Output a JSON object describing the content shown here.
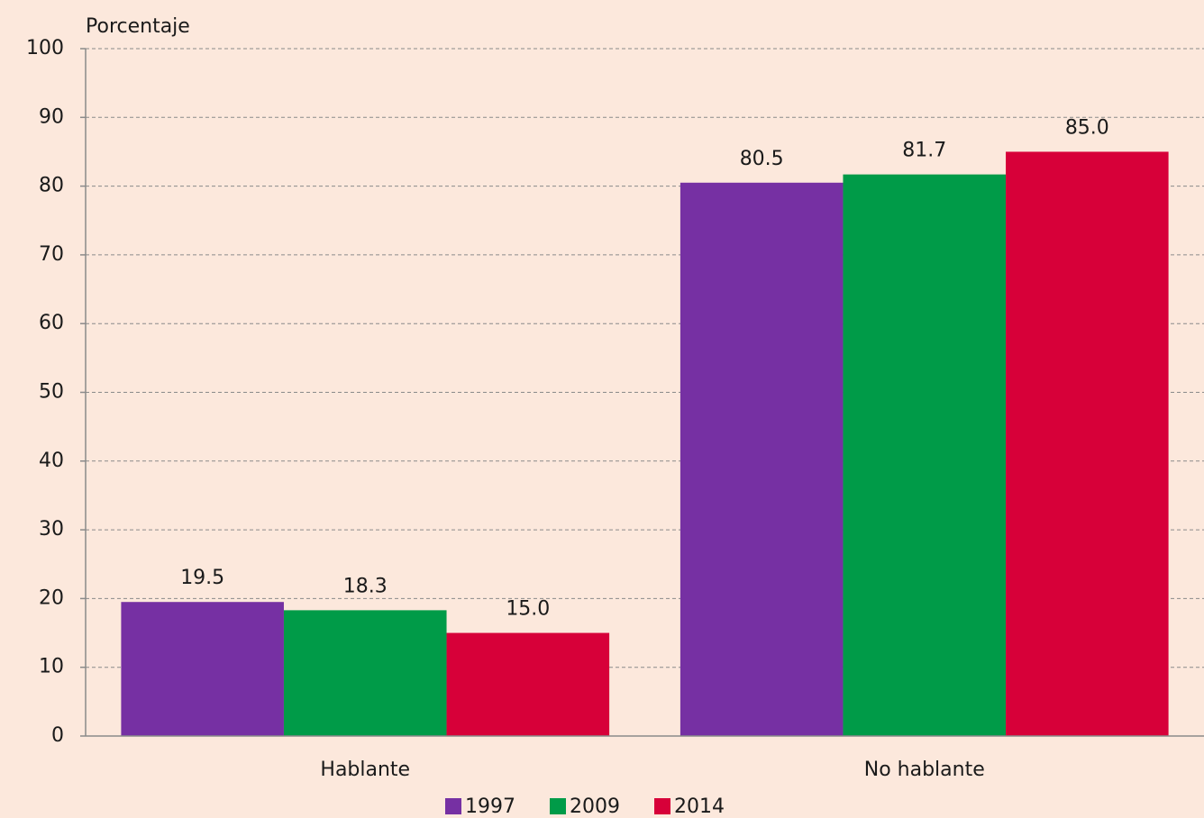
{
  "chart_data": {
    "type": "bar",
    "y_label": "Porcentaje",
    "categories": [
      "Hablante",
      "No hablante"
    ],
    "series": [
      {
        "name": "1997",
        "color": "#7630a3",
        "values": [
          19.5,
          80.5
        ],
        "value_labels": [
          "19.5",
          "80.5"
        ]
      },
      {
        "name": "2009",
        "color": "#009b48",
        "values": [
          18.3,
          81.7
        ],
        "value_labels": [
          "18.3",
          "81.7"
        ]
      },
      {
        "name": "2014",
        "color": "#d70039",
        "values": [
          15,
          85
        ],
        "value_labels": [
          "15.0",
          "85.0"
        ]
      }
    ],
    "ylim": [
      0,
      100
    ],
    "yticks": [
      0,
      10,
      20,
      30,
      40,
      50,
      60,
      70,
      80,
      90,
      100
    ],
    "grid": true,
    "legend": "bottom"
  }
}
